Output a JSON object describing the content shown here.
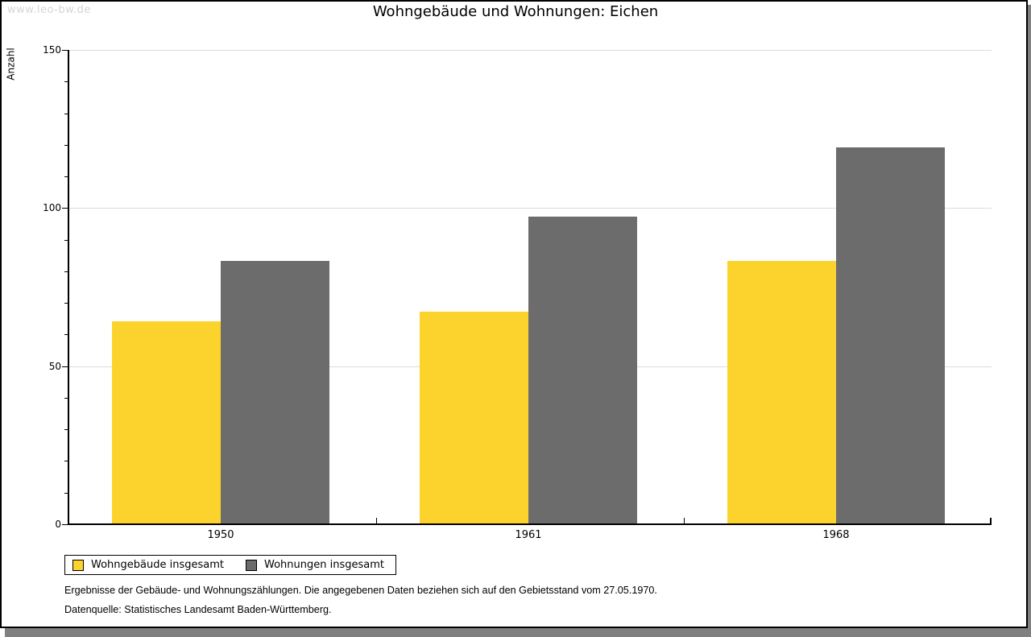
{
  "page": {
    "watermark": "www.leo-bw.de"
  },
  "chart_data": {
    "type": "bar",
    "title": "Wohngebäude und Wohnungen: Eichen",
    "ylabel": "Anzahl",
    "xlabel": "",
    "categories": [
      "1950",
      "1961",
      "1968"
    ],
    "series": [
      {
        "name": "Wohngebäude insgesamt",
        "color": "#FCD32C",
        "values": [
          64,
          67,
          83
        ]
      },
      {
        "name": "Wohnungen insgesamt",
        "color": "#6C6C6C",
        "values": [
          83,
          97,
          119
        ]
      }
    ],
    "ylim": [
      0,
      150
    ],
    "yticks_major": [
      0,
      50,
      100,
      150
    ],
    "ytick_minor_step": 10,
    "grid": true,
    "legend_position": "bottom-left",
    "footnotes": [
      "Ergebnisse der Gebäude- und Wohnungszählungen. Die angegebenen Daten beziehen sich auf den Gebietsstand vom 27.05.1970.",
      "Datenquelle: Statistisches Landesamt Baden-Württemberg."
    ],
    "colors": {
      "grid": "#DCDCDC",
      "axis": "#000000",
      "watermark_text": "#D5D5D5",
      "frame_shadow": "#808080"
    }
  }
}
